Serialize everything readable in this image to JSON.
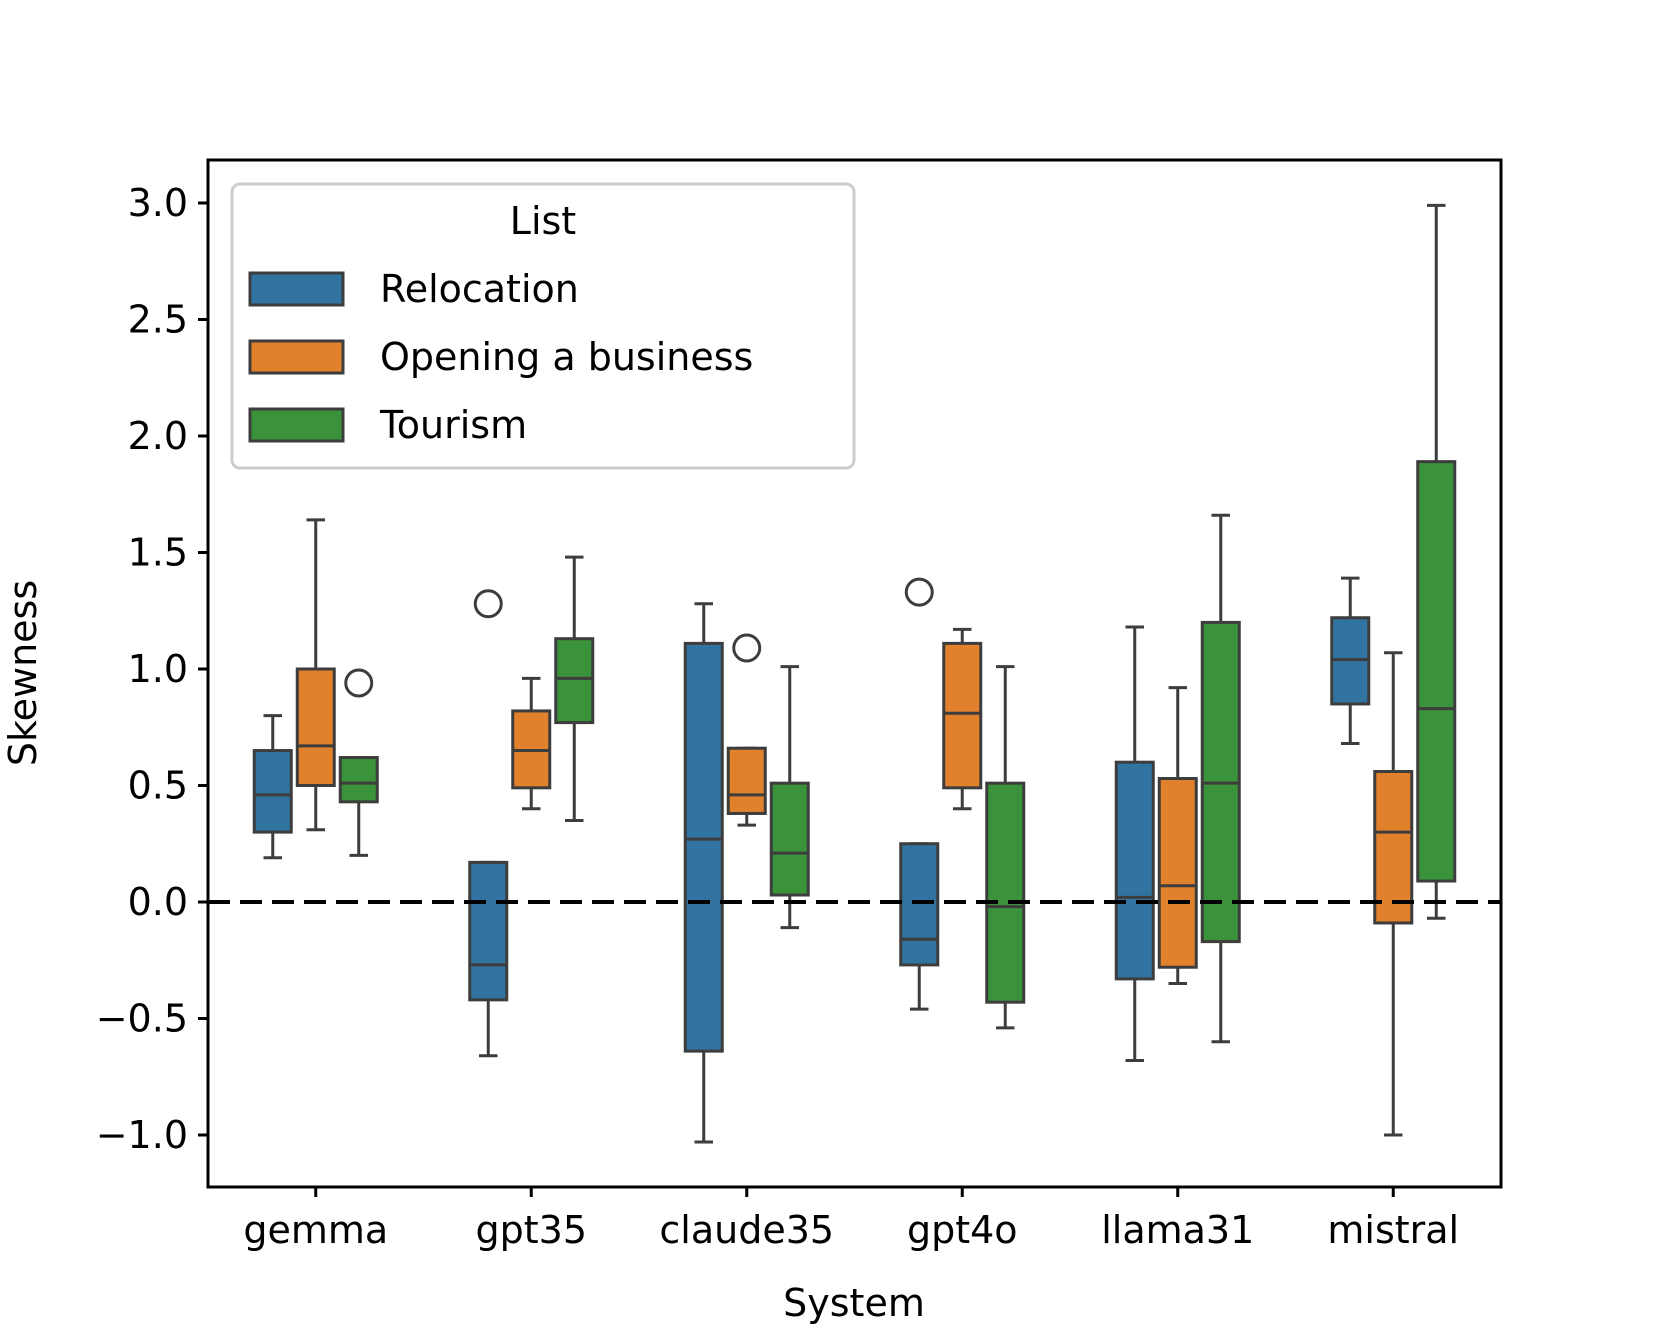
{
  "chart_data": {
    "type": "boxplot",
    "title": "",
    "xlabel": "System",
    "ylabel": "Skewness",
    "ylim": [
      -1.23,
      3.18
    ],
    "yticks": [
      3.0,
      2.5,
      2.0,
      1.5,
      1.0,
      0.5,
      0.0,
      -0.5,
      -1.0
    ],
    "ytick_labels": [
      "3.0",
      "2.5",
      "2.0",
      "1.5",
      "1.0",
      "0.5",
      "0.0",
      "−0.5",
      "−1.0"
    ],
    "categories": [
      "gemma",
      "gpt35",
      "claude35",
      "gpt4o",
      "llama31",
      "mistral"
    ],
    "reference_line": {
      "y": 0.0,
      "style": "dashed",
      "color": "#000000"
    },
    "legend": {
      "title": "List",
      "placement": "upper-left"
    },
    "series": [
      {
        "name": "Relocation",
        "color": "#3274a1",
        "boxes": [
          {
            "whisker_low": 0.19,
            "q1": 0.3,
            "median": 0.46,
            "q3": 0.65,
            "whisker_high": 0.8,
            "outliers": []
          },
          {
            "whisker_low": -0.66,
            "q1": -0.42,
            "median": -0.27,
            "q3": 0.17,
            "whisker_high": 0.17,
            "outliers": [
              1.28
            ]
          },
          {
            "whisker_low": -1.03,
            "q1": -0.64,
            "median": 0.27,
            "q3": 1.11,
            "whisker_high": 1.28,
            "outliers": []
          },
          {
            "whisker_low": -0.46,
            "q1": -0.27,
            "median": -0.16,
            "q3": 0.25,
            "whisker_high": 0.25,
            "outliers": [
              1.33
            ]
          },
          {
            "whisker_low": -0.68,
            "q1": -0.33,
            "median": 0.02,
            "q3": 0.6,
            "whisker_high": 1.18,
            "outliers": []
          },
          {
            "whisker_low": 0.68,
            "q1": 0.85,
            "median": 1.04,
            "q3": 1.22,
            "whisker_high": 1.39,
            "outliers": []
          }
        ]
      },
      {
        "name": "Opening a business",
        "color": "#e1812c",
        "boxes": [
          {
            "whisker_low": 0.31,
            "q1": 0.5,
            "median": 0.67,
            "q3": 1.0,
            "whisker_high": 1.64,
            "outliers": []
          },
          {
            "whisker_low": 0.4,
            "q1": 0.49,
            "median": 0.65,
            "q3": 0.82,
            "whisker_high": 0.96,
            "outliers": []
          },
          {
            "whisker_low": 0.33,
            "q1": 0.38,
            "median": 0.46,
            "q3": 0.66,
            "whisker_high": 0.66,
            "outliers": [
              1.09
            ]
          },
          {
            "whisker_low": 0.4,
            "q1": 0.49,
            "median": 0.81,
            "q3": 1.11,
            "whisker_high": 1.17,
            "outliers": []
          },
          {
            "whisker_low": -0.35,
            "q1": -0.28,
            "median": 0.07,
            "q3": 0.53,
            "whisker_high": 0.92,
            "outliers": []
          },
          {
            "whisker_low": -1.0,
            "q1": -0.09,
            "median": 0.3,
            "q3": 0.56,
            "whisker_high": 1.07,
            "outliers": []
          }
        ]
      },
      {
        "name": "Tourism",
        "color": "#3a923a",
        "boxes": [
          {
            "whisker_low": 0.2,
            "q1": 0.43,
            "median": 0.51,
            "q3": 0.62,
            "whisker_high": 0.62,
            "outliers": [
              0.94
            ]
          },
          {
            "whisker_low": 0.35,
            "q1": 0.77,
            "median": 0.96,
            "q3": 1.13,
            "whisker_high": 1.48,
            "outliers": []
          },
          {
            "whisker_low": -0.11,
            "q1": 0.03,
            "median": 0.21,
            "q3": 0.51,
            "whisker_high": 1.01,
            "outliers": []
          },
          {
            "whisker_low": -0.54,
            "q1": -0.43,
            "median": -0.02,
            "q3": 0.51,
            "whisker_high": 1.01,
            "outliers": []
          },
          {
            "whisker_low": -0.6,
            "q1": -0.17,
            "median": 0.51,
            "q3": 1.2,
            "whisker_high": 1.66,
            "outliers": []
          },
          {
            "whisker_low": -0.07,
            "q1": 0.09,
            "median": 0.83,
            "q3": 1.89,
            "whisker_high": 2.99,
            "outliers": []
          }
        ]
      }
    ]
  }
}
